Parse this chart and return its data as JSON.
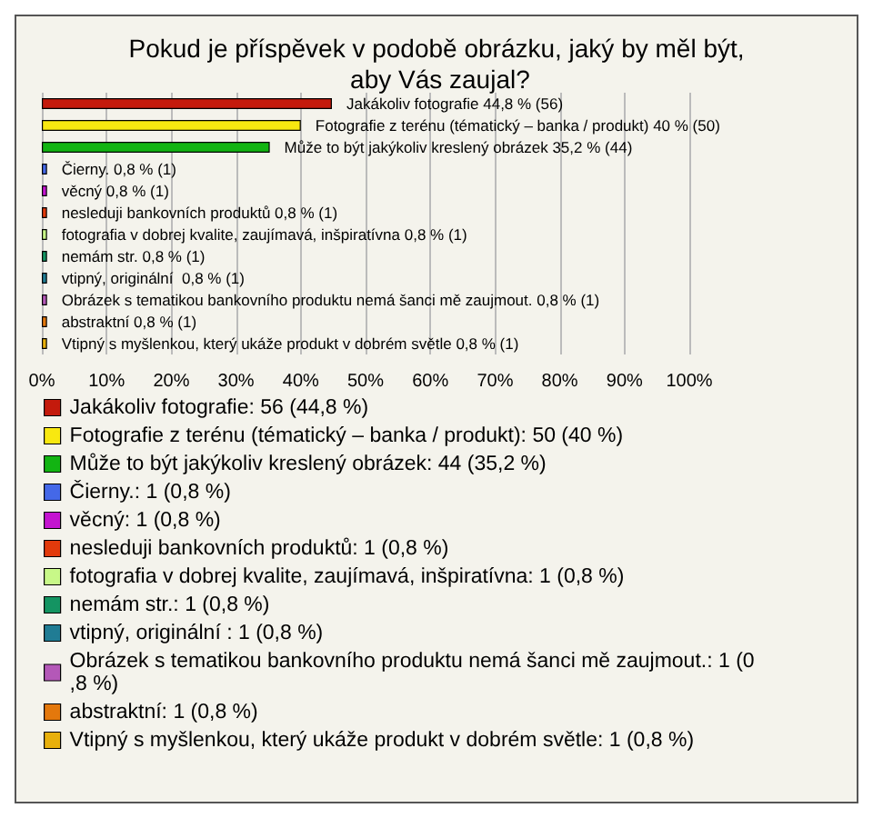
{
  "chart_data": {
    "type": "bar",
    "orientation": "horizontal",
    "stacked": true,
    "title": "Pokud je příspěvek v podobě obrázku, jaký by měl být, aby Vás zaujal?",
    "categories": [
      "Jakákoliv fotografie",
      "Fotografie z terénu (tématický – banka / produkt)",
      "Může to být jakýkoliv kreslený obrázek",
      "Čierny.",
      "věcný",
      "nesleduji bankovních produktů",
      "fotografia v dobrej kvalite, zaujímavá, inšpiratívna",
      "nemám str.",
      "vtipný, originální ",
      "Obrázek s tematikou bankovního produktu nemá šanci mě zaujmout.",
      "abstraktní",
      "Vtipný s myšlenkou, který ukáže produkt v dobrém světle"
    ],
    "value_labels": [
      "44,8 % (56)",
      "40 % (50)",
      "35,2 % (44)",
      "0,8 % (1)",
      "0,8 % (1)",
      "0,8 % (1)",
      "0,8 % (1)",
      "0,8 % (1)",
      "0,8 % (1)",
      "0,8 % (1)",
      "0,8 % (1)",
      "0,8 % (1)"
    ],
    "series": [
      {
        "name": "Jakákoliv fotografie: 56 (44,8 %)",
        "color": "#c41a0c",
        "values": [
          44.8,
          null,
          null,
          null,
          null,
          null,
          null,
          null,
          null,
          null,
          null,
          null
        ]
      },
      {
        "name": "Fotografie z terénu (tématický – banka / produkt): 50 (40 %)",
        "color": "#f8e810",
        "values": [
          null,
          40,
          null,
          null,
          null,
          null,
          null,
          null,
          null,
          null,
          null,
          null
        ]
      },
      {
        "name": "Může to být jakýkoliv kreslený obrázek: 44 (35,2 %)",
        "color": "#12b412",
        "values": [
          null,
          null,
          35.2,
          null,
          null,
          null,
          null,
          null,
          null,
          null,
          null,
          null
        ]
      },
      {
        "name": "Čierny.: 1 (0,8 %)",
        "color": "#4468e8",
        "values": [
          null,
          null,
          null,
          0.8,
          null,
          null,
          null,
          null,
          null,
          null,
          null,
          null
        ]
      },
      {
        "name": "věcný: 1 (0,8 %)",
        "color": "#c414d0",
        "values": [
          null,
          null,
          null,
          null,
          0.8,
          null,
          null,
          null,
          null,
          null,
          null,
          null
        ]
      },
      {
        "name": "nesleduji bankovních produktů: 1 (0,8 %)",
        "color": "#e23a0c",
        "values": [
          null,
          null,
          null,
          null,
          null,
          0.8,
          null,
          null,
          null,
          null,
          null,
          null
        ]
      },
      {
        "name": "fotografia v dobrej kvalite, zaujímavá, inšpiratívna: 1 (0,8 %)",
        "color": "#c8f888",
        "values": [
          null,
          null,
          null,
          null,
          null,
          null,
          0.8,
          null,
          null,
          null,
          null,
          null
        ]
      },
      {
        "name": "nemám str.: 1 (0,8 %)",
        "color": "#149462",
        "values": [
          null,
          null,
          null,
          null,
          null,
          null,
          null,
          0.8,
          null,
          null,
          null,
          null
        ]
      },
      {
        "name": "vtipný, originální : 1 (0,8 %)",
        "color": "#207c94",
        "values": [
          null,
          null,
          null,
          null,
          null,
          null,
          null,
          null,
          0.8,
          null,
          null,
          null
        ]
      },
      {
        "name": "Obrázek s tematikou bankovního produktu nemá šanci mě zaujmout.: 1 (0,8 %)",
        "color": "#b458b8",
        "values": [
          null,
          null,
          null,
          null,
          null,
          null,
          null,
          null,
          null,
          0.8,
          null,
          null
        ]
      },
      {
        "name": "abstraktní: 1 (0,8 %)",
        "color": "#e4780c",
        "values": [
          null,
          null,
          null,
          null,
          null,
          null,
          null,
          null,
          null,
          null,
          0.8,
          null
        ]
      },
      {
        "name": "Vtipný s myšlenkou, který ukáže produkt v dobrém světle: 1 (0,8 %)",
        "color": "#e8b00c",
        "values": [
          null,
          null,
          null,
          null,
          null,
          null,
          null,
          null,
          null,
          null,
          null,
          0.8
        ]
      }
    ],
    "xlim": [
      0,
      100
    ],
    "xticks": [
      {
        "value": 0,
        "label": "0%"
      },
      {
        "value": 10,
        "label": "10%"
      },
      {
        "value": 20,
        "label": "20%"
      },
      {
        "value": 30,
        "label": "30%"
      },
      {
        "value": 40,
        "label": "40%"
      },
      {
        "value": 50,
        "label": "50%"
      },
      {
        "value": 60,
        "label": "60%"
      },
      {
        "value": 70,
        "label": "70%"
      },
      {
        "value": 80,
        "label": "80%"
      },
      {
        "value": 90,
        "label": "90%"
      },
      {
        "value": 100,
        "label": "100%"
      }
    ],
    "grid": "x",
    "legend": "bottom",
    "tick_labels": "x"
  }
}
